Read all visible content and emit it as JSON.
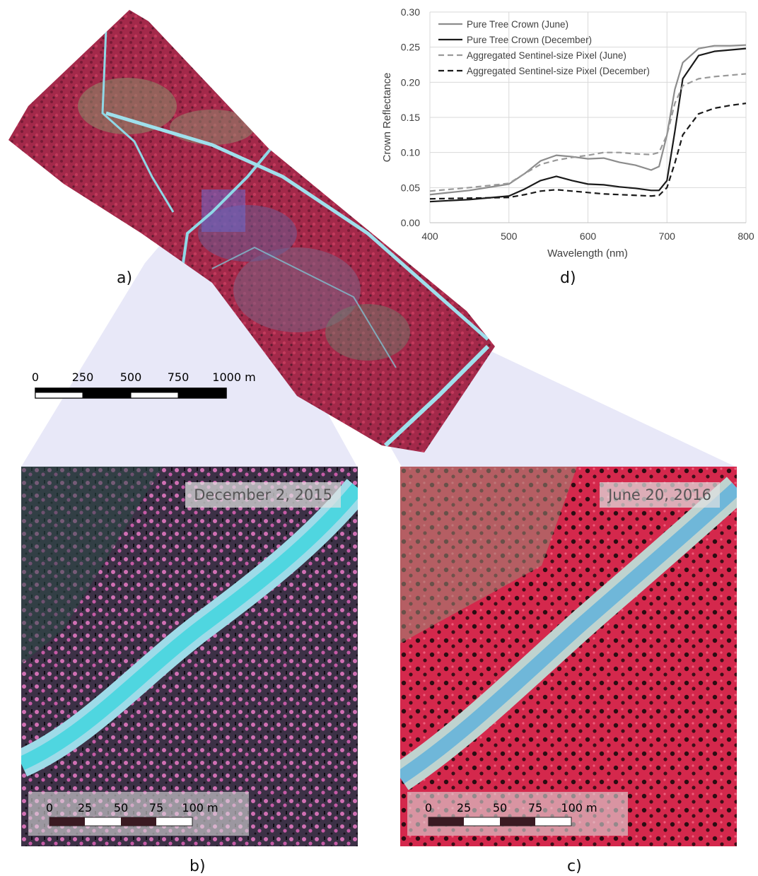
{
  "figure": {
    "panel_a_label": "a)",
    "panel_b_label": "b)",
    "panel_c_label": "c)",
    "panel_d_label": "d)"
  },
  "overview_scale": {
    "ticks": [
      "0",
      "250",
      "500",
      "750",
      "1000 m"
    ]
  },
  "detail_scale": {
    "ticks": [
      "0",
      "25",
      "50",
      "75",
      "100 m"
    ]
  },
  "panel_b": {
    "date": "December 2, 2015"
  },
  "panel_c": {
    "date": "June 20, 2016"
  },
  "colors": {
    "forest_red": "#b0284a",
    "river": "#7fd0df",
    "zoom_wedge": "#e6e6f7",
    "pure_june": "#8c8c8c",
    "pure_december": "#1a1a1a",
    "agg_june": "#999999",
    "agg_december": "#1a1a1a"
  },
  "chart_data": {
    "type": "line",
    "xlabel": "Wavelength (nm)",
    "ylabel": "Crown Reflectance",
    "xlim": [
      400,
      800
    ],
    "ylim": [
      0,
      0.3
    ],
    "xticks": [
      "400",
      "500",
      "600",
      "700",
      "800"
    ],
    "yticks": [
      "0.00",
      "0.05",
      "0.10",
      "0.15",
      "0.20",
      "0.25",
      "0.30"
    ],
    "grid": true,
    "legend_position": "top-left",
    "x": [
      400,
      450,
      500,
      520,
      540,
      560,
      580,
      600,
      620,
      640,
      660,
      680,
      690,
      700,
      710,
      720,
      740,
      760,
      780,
      800
    ],
    "series": [
      {
        "name": "Pure Tree Crown (June)",
        "style": "solid",
        "color": "#8c8c8c",
        "values": [
          0.04,
          0.046,
          0.055,
          0.07,
          0.088,
          0.096,
          0.094,
          0.091,
          0.092,
          0.086,
          0.082,
          0.075,
          0.08,
          0.125,
          0.19,
          0.228,
          0.248,
          0.252,
          0.252,
          0.253
        ]
      },
      {
        "name": "Pure Tree Crown (December)",
        "style": "solid",
        "color": "#1a1a1a",
        "values": [
          0.03,
          0.033,
          0.038,
          0.048,
          0.06,
          0.066,
          0.06,
          0.055,
          0.054,
          0.051,
          0.049,
          0.046,
          0.046,
          0.06,
          0.13,
          0.205,
          0.238,
          0.244,
          0.246,
          0.248
        ]
      },
      {
        "name": "Aggregated Sentinel-size Pixel (June)",
        "style": "dashed",
        "color": "#999999",
        "values": [
          0.045,
          0.05,
          0.056,
          0.07,
          0.083,
          0.089,
          0.093,
          0.096,
          0.1,
          0.1,
          0.098,
          0.097,
          0.1,
          0.125,
          0.17,
          0.195,
          0.205,
          0.208,
          0.21,
          0.212
        ]
      },
      {
        "name": "Aggregated Sentinel-size Pixel (December)",
        "style": "dashed",
        "color": "#1a1a1a",
        "values": [
          0.034,
          0.035,
          0.036,
          0.04,
          0.045,
          0.047,
          0.045,
          0.043,
          0.041,
          0.04,
          0.039,
          0.038,
          0.039,
          0.05,
          0.085,
          0.125,
          0.155,
          0.163,
          0.167,
          0.17
        ]
      }
    ]
  }
}
